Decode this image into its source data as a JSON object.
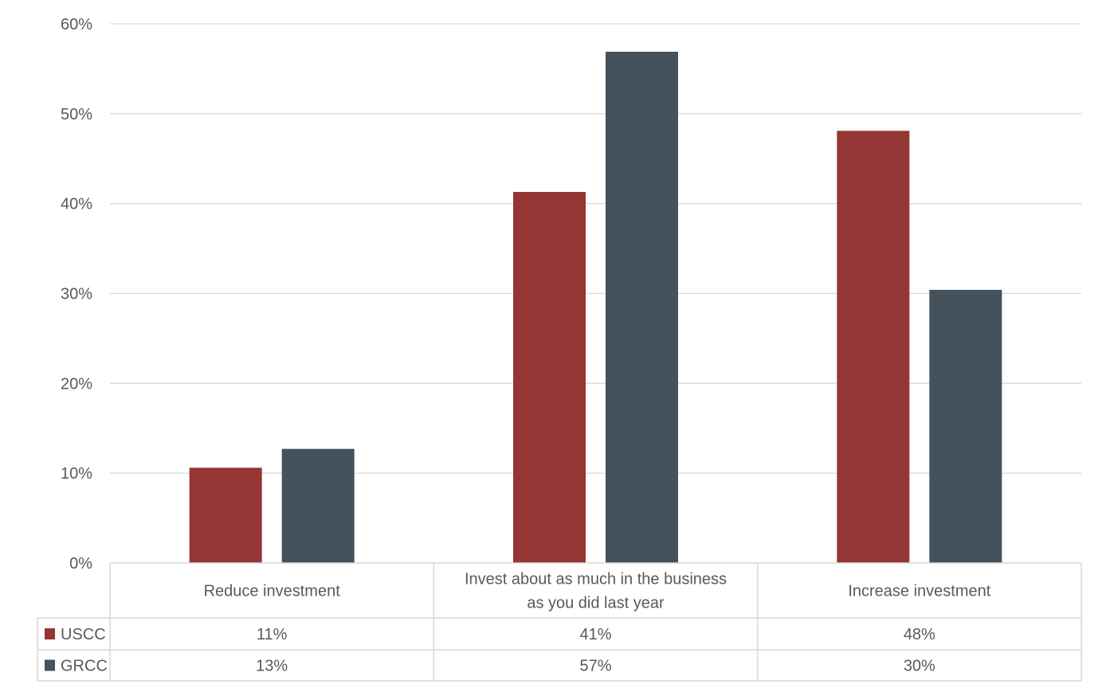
{
  "chart_data": {
    "type": "bar",
    "categories": [
      "Reduce investment",
      "Invest about as much in the business as you did last year",
      "Increase investment"
    ],
    "category_lines": [
      [
        "Reduce investment"
      ],
      [
        "Invest about as much in the business",
        "as you did last year"
      ],
      [
        "Increase investment"
      ]
    ],
    "series": [
      {
        "name": "USCC",
        "values": [
          10.6,
          41.3,
          48.1
        ],
        "color": "#943634",
        "table_values": [
          "11%",
          "41%",
          "48%"
        ]
      },
      {
        "name": "GRCC",
        "values": [
          12.7,
          56.9,
          30.4
        ],
        "color": "#44525D",
        "table_values": [
          "13%",
          "57%",
          "30%"
        ]
      }
    ],
    "yticks": [
      "0%",
      "10%",
      "20%",
      "30%",
      "40%",
      "50%",
      "60%"
    ],
    "ylim": [
      0,
      60
    ],
    "grid": true,
    "legend": "data-table",
    "title": "",
    "xlabel": "",
    "ylabel": ""
  }
}
